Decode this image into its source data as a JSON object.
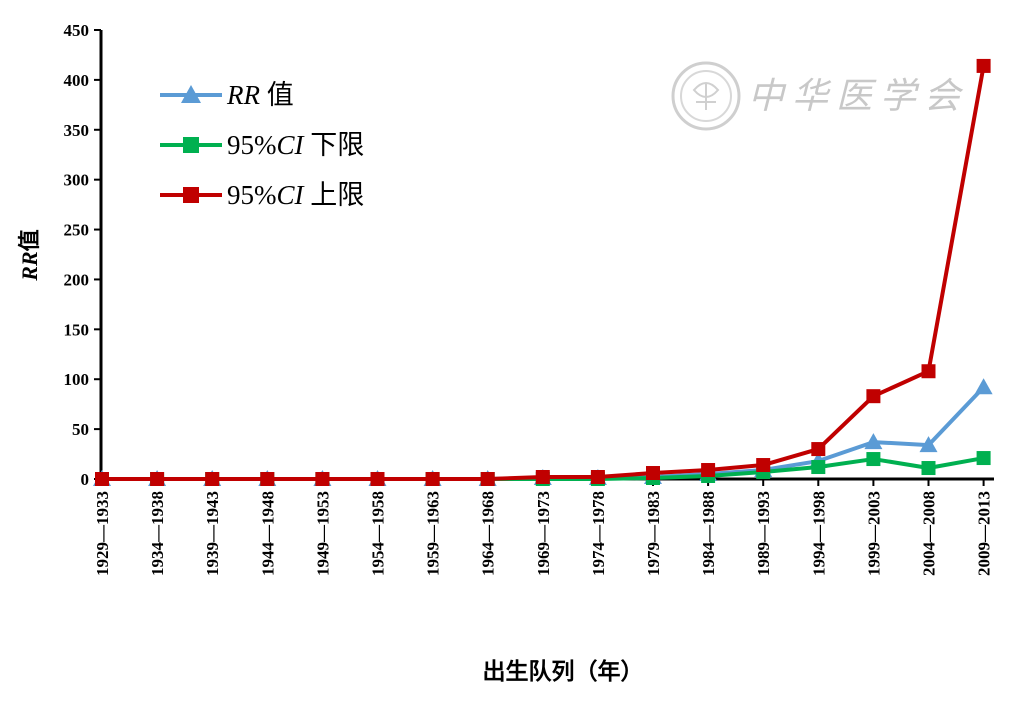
{
  "chart_data": {
    "type": "line",
    "categories": [
      "1929—1933",
      "1934—1938",
      "1939—1943",
      "1944—1948",
      "1949—1953",
      "1954—1958",
      "1959—1963",
      "1964—1968",
      "1969—1973",
      "1974—1978",
      "1979—1983",
      "1984—1988",
      "1989—1993",
      "1994—1998",
      "1999—2003",
      "2004—2008",
      "2009—2013"
    ],
    "series": [
      {
        "name": "RR 值",
        "name_italic": "RR",
        "name_rest": " 值",
        "color": "#5b9bd5",
        "marker": "triangle",
        "values": [
          0,
          0,
          0,
          0,
          0,
          0,
          0,
          0,
          1,
          1,
          2,
          5,
          9,
          18,
          37,
          34,
          92
        ]
      },
      {
        "name": "95%CI 下限",
        "name_plain": "95%",
        "name_italic": "CI",
        "name_rest": " 下限",
        "color": "#00b050",
        "marker": "square",
        "values": [
          0,
          0,
          0,
          0,
          0,
          0,
          0,
          0,
          0,
          0,
          1,
          3,
          7,
          12,
          20,
          11,
          21
        ]
      },
      {
        "name": "95%CI 上限",
        "name_plain": "95%",
        "name_italic": "CI",
        "name_rest": " 上限",
        "color": "#c00000",
        "marker": "square",
        "values": [
          0,
          0,
          0,
          0,
          0,
          0,
          0,
          0,
          2,
          2,
          6,
          9,
          14,
          30,
          83,
          108,
          414
        ]
      }
    ],
    "xlabel": "出生队列（年）",
    "ylabel": "RR值",
    "ylabel_italic": "RR",
    "ylabel_rest": "值",
    "ylim": [
      0,
      450
    ],
    "yticks": [
      0,
      50,
      100,
      150,
      200,
      250,
      300,
      350,
      400,
      450
    ],
    "grid": false,
    "legend_position": "top-left"
  },
  "watermark": {
    "text": "中华医学会",
    "logo_icon": "chinese-medical-association-seal-icon"
  }
}
